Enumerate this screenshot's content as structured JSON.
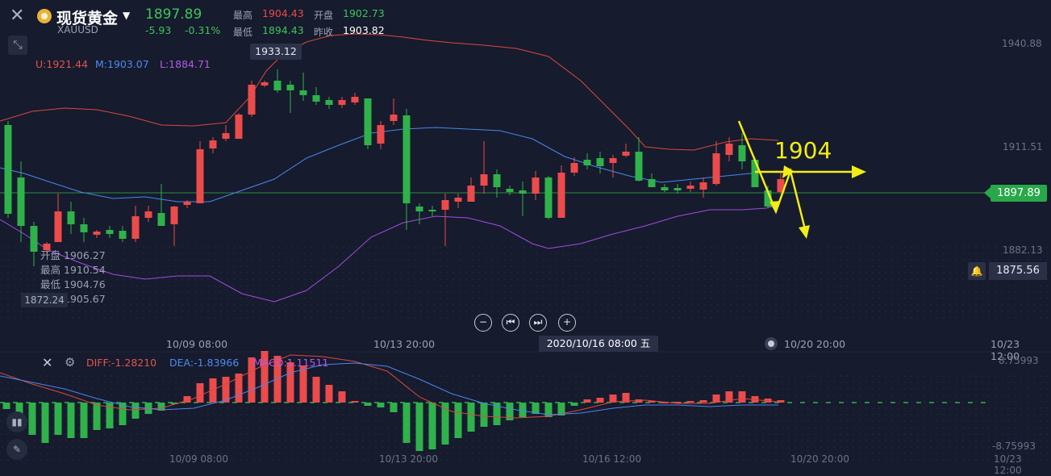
{
  "header": {
    "title": "现货黄金",
    "symbol": "XAUUSD",
    "price": "1897.89",
    "change": "-5.93",
    "change_pct": "-0.31%",
    "high_label": "最高",
    "high": "1904.43",
    "open_label": "开盘",
    "open": "1902.73",
    "low_label": "最低",
    "low": "1894.43",
    "prev_close_label": "昨收",
    "prev_close": "1903.82"
  },
  "boll": {
    "upper": "U:1921.44",
    "middle": "M:1903.07",
    "lower": "L:1884.71"
  },
  "price_axis": {
    "ticks": [
      "1940.88",
      "1911.51",
      "1882.13"
    ],
    "current": "1897.89",
    "alert": "1875.56",
    "peak_tip": "1933.12",
    "left_tag": "1872.24"
  },
  "ohlc_popup": {
    "open_label": "开盘",
    "open": "1906.27",
    "high_label": "最高",
    "high": "1910.54",
    "low_label": "最低",
    "low": "1904.76",
    "close_label": "收盘",
    "close": "1905.67"
  },
  "time_axis": {
    "labels": [
      "10/09 08:00",
      "10/13 20:00",
      "10/20 20:00",
      "10/23 12:00"
    ],
    "selected": "2020/10/16 08:00 五"
  },
  "macd": {
    "diff": "DIFF:-1.28210",
    "dea": "DEA:-1.83966",
    "macd": "MACD:1.11511",
    "ticks": [
      "8.75993",
      "-8.75993"
    ],
    "time_labels": [
      "10/09 08:00",
      "10/13 20:00",
      "10/16 12:00",
      "10/20 20:00",
      "10/23 12:00"
    ]
  },
  "annotation": {
    "text": "1904"
  },
  "colors": {
    "up": "#ec4b4b",
    "down": "#2fb24a",
    "upper_band": "#d9493f",
    "middle_band": "#4a86ee",
    "lower_band": "#a24de0",
    "annotation": "#f2ec17"
  },
  "icons": {
    "close": "close-icon",
    "expand": "expand-icon",
    "bell": "bell-icon",
    "gear": "gear-icon",
    "zoom_out": "zoom-out-icon",
    "prev": "step-back-icon",
    "next": "step-forward-icon",
    "zoom_in": "zoom-in-icon"
  }
}
